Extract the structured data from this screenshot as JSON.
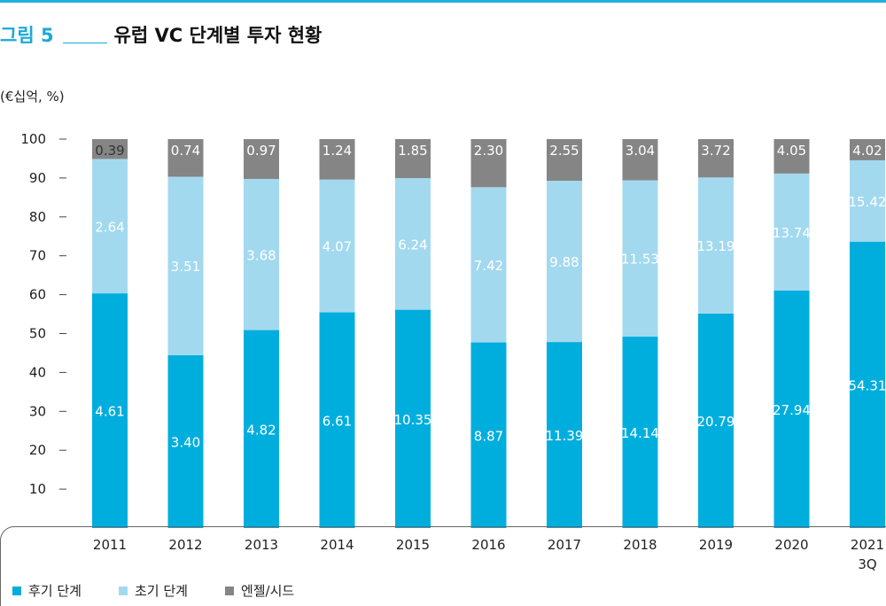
{
  "header": {
    "figure_label": "그림 5",
    "title": "유럽 VC 단계별 투자 현황"
  },
  "unit_label": "(€십억, %)",
  "legend": [
    {
      "label": "후기 단계",
      "color": "#00aede"
    },
    {
      "label": "초기 단계",
      "color": "#a3d9ef"
    },
    {
      "label": "엔젤/시드",
      "color": "#858585"
    }
  ],
  "chart_data": {
    "type": "bar",
    "stacked": true,
    "categories": [
      "2011",
      "2012",
      "2013",
      "2014",
      "2015",
      "2016",
      "2017",
      "2018",
      "2019",
      "2020",
      "2021\n3Q"
    ],
    "ylim": [
      0,
      100
    ],
    "yticks": [
      10,
      20,
      30,
      40,
      50,
      60,
      70,
      80,
      90,
      100
    ],
    "grid": false,
    "legend_position": "bottom-left",
    "series": [
      {
        "name": "후기 단계",
        "color": "#00aede",
        "values": [
          4.61,
          3.4,
          4.82,
          6.61,
          10.35,
          8.87,
          11.39,
          14.14,
          20.79,
          27.94,
          54.31
        ]
      },
      {
        "name": "초기 단계",
        "color": "#a3d9ef",
        "values": [
          2.64,
          3.51,
          3.68,
          4.07,
          6.24,
          7.42,
          9.88,
          11.53,
          13.19,
          13.74,
          15.42
        ]
      },
      {
        "name": "엔젤/시드",
        "color": "#858585",
        "values": [
          0.39,
          0.74,
          0.97,
          1.24,
          1.85,
          2.3,
          2.55,
          3.04,
          3.72,
          4.05,
          4.02
        ]
      }
    ],
    "label_values": [
      [
        "4.61",
        "2.64",
        "0.39"
      ],
      [
        "3.40",
        "3.51",
        "0.74"
      ],
      [
        "4.82",
        "3.68",
        "0.97"
      ],
      [
        "6.61",
        "4.07",
        "1.24"
      ],
      [
        "10.35",
        "6.24",
        "1.85"
      ],
      [
        "8.87",
        "7.42",
        "2.30"
      ],
      [
        "11.39",
        "9.88",
        "2.55"
      ],
      [
        "14.14",
        "11.53",
        "3.04"
      ],
      [
        "20.79",
        "13.19",
        "3.72"
      ],
      [
        "27.94",
        "13.74",
        "4.05"
      ],
      [
        "54.31",
        "15.42",
        "4.02"
      ]
    ]
  }
}
